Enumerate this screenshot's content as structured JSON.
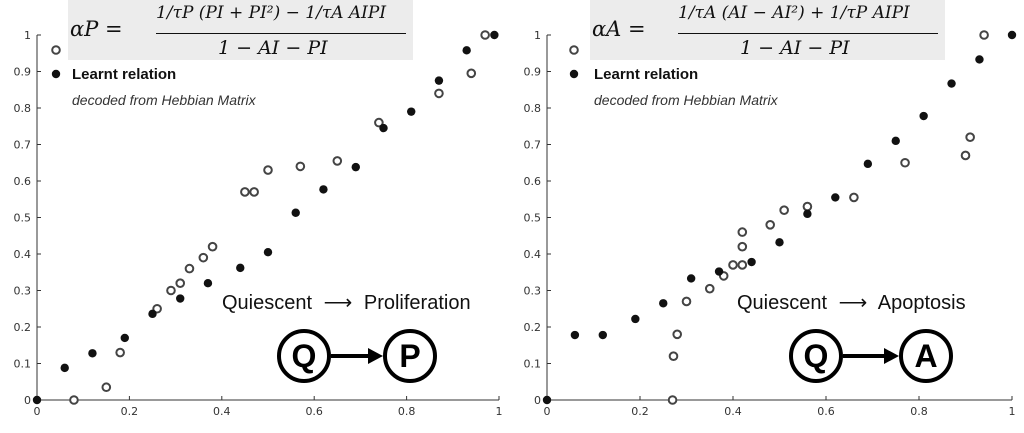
{
  "colors": {
    "filled": "#111111",
    "open": "#444444",
    "axis": "#333333"
  },
  "chart_data": [
    {
      "type": "scatter",
      "xlim": [
        0,
        1
      ],
      "ylim": [
        0,
        1
      ],
      "xticks": [
        "0",
        "0.2",
        "0.4",
        "0.6",
        "0.8",
        "1"
      ],
      "yticks": [
        "0",
        "0.1",
        "0.2",
        "0.3",
        "0.4",
        "0.5",
        "0.6",
        "0.7",
        "0.8",
        "0.9",
        "1"
      ],
      "grid": false,
      "legend_placement": "top-left",
      "formula": {
        "lhs": "αP =",
        "numerator": "1/τP (PI + PI²) − 1/τA AIPI",
        "denominator": "1 − AI − PI"
      },
      "series": [
        {
          "name": "",
          "marker": "open",
          "x": [
            0.08,
            0.15,
            0.18,
            0.26,
            0.29,
            0.31,
            0.33,
            0.36,
            0.38,
            0.45,
            0.47,
            0.5,
            0.57,
            0.65,
            0.74,
            0.87,
            0.94,
            0.97
          ],
          "y": [
            0.0,
            0.035,
            0.13,
            0.25,
            0.3,
            0.32,
            0.36,
            0.39,
            0.42,
            0.57,
            0.57,
            0.63,
            0.64,
            0.655,
            0.76,
            0.84,
            0.895,
            1.0
          ]
        },
        {
          "name": "Learnt relation",
          "marker": "filled",
          "x": [
            0.0,
            0.06,
            0.12,
            0.19,
            0.25,
            0.31,
            0.37,
            0.44,
            0.5,
            0.56,
            0.62,
            0.69,
            0.75,
            0.81,
            0.87,
            0.93,
            0.99
          ],
          "y": [
            0.0,
            0.088,
            0.128,
            0.17,
            0.236,
            0.278,
            0.32,
            0.362,
            0.405,
            0.513,
            0.577,
            0.638,
            0.745,
            0.79,
            0.875,
            0.958,
            1.0
          ]
        }
      ],
      "legend_note": "decoded from Hebbian Matrix",
      "transition": {
        "from": "Quiescent",
        "to": "Proliferation",
        "arrow": "⟶",
        "from_node": "Q",
        "to_node": "P"
      }
    },
    {
      "type": "scatter",
      "xlim": [
        0,
        1
      ],
      "ylim": [
        0,
        1
      ],
      "xticks": [
        "0",
        "0.2",
        "0.4",
        "0.6",
        "0.8",
        "1"
      ],
      "yticks": [
        "0",
        "0.1",
        "0.2",
        "0.3",
        "0.4",
        "0.5",
        "0.6",
        "0.7",
        "0.8",
        "0.9",
        "1"
      ],
      "grid": false,
      "legend_placement": "top-left",
      "formula": {
        "lhs": "αA =",
        "numerator": "1/τA (AI − AI²) + 1/τP AIPI",
        "denominator": "1 − AI − PI"
      },
      "series": [
        {
          "name": "",
          "marker": "open",
          "x": [
            0.27,
            0.272,
            0.28,
            0.3,
            0.35,
            0.38,
            0.4,
            0.42,
            0.42,
            0.42,
            0.48,
            0.51,
            0.56,
            0.66,
            0.77,
            0.9,
            0.91,
            0.94
          ],
          "y": [
            0.0,
            0.12,
            0.18,
            0.27,
            0.305,
            0.34,
            0.37,
            0.37,
            0.42,
            0.46,
            0.48,
            0.52,
            0.53,
            0.555,
            0.65,
            0.67,
            0.72,
            1.0
          ]
        },
        {
          "name": "Learnt relation",
          "marker": "filled",
          "x": [
            0.0,
            0.06,
            0.12,
            0.19,
            0.25,
            0.31,
            0.37,
            0.44,
            0.5,
            0.56,
            0.62,
            0.69,
            0.75,
            0.81,
            0.87,
            0.93,
            1.0
          ],
          "y": [
            0.0,
            0.178,
            0.178,
            0.222,
            0.265,
            0.333,
            0.352,
            0.378,
            0.432,
            0.51,
            0.555,
            0.647,
            0.71,
            0.778,
            0.867,
            0.933,
            1.0
          ]
        }
      ],
      "legend_note": "decoded from Hebbian Matrix",
      "transition": {
        "from": "Quiescent",
        "to": "Apoptosis",
        "arrow": "⟶",
        "from_node": "Q",
        "to_node": "A"
      }
    }
  ]
}
